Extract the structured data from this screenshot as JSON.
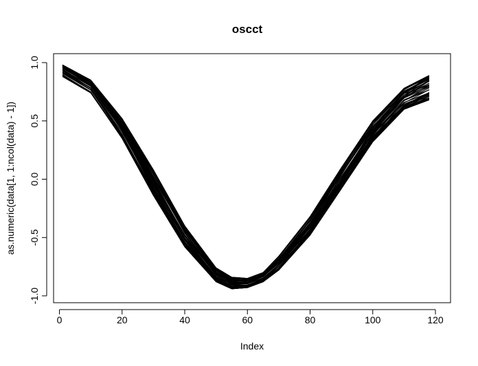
{
  "chart_data": {
    "type": "line",
    "title": "oscct",
    "xlabel": "Index",
    "ylabel": "as.numeric(data[1, 1:ncol(data) - 1])",
    "xlim": [
      1,
      120
    ],
    "ylim": [
      -1.0,
      1.0
    ],
    "x_ticks": [
      0,
      20,
      40,
      60,
      80,
      100,
      120
    ],
    "y_ticks": [
      -1.0,
      -0.5,
      0.0,
      0.5,
      1.0
    ],
    "x_tick_labels": [
      "0",
      "20",
      "40",
      "60",
      "80",
      "100",
      "120"
    ],
    "y_tick_labels": [
      "-1.0",
      "-0.5",
      "0.0",
      "0.5",
      "1.0"
    ],
    "grid": false,
    "legend": "none",
    "line_color": "#000000",
    "n_points_per_series": 118,
    "series_envelope": {
      "x": [
        1,
        10,
        20,
        30,
        40,
        50,
        55,
        60,
        65,
        70,
        80,
        90,
        100,
        110,
        118
      ],
      "upper": [
        0.98,
        0.85,
        0.52,
        0.08,
        -0.4,
        -0.76,
        -0.84,
        -0.85,
        -0.8,
        -0.66,
        -0.32,
        0.1,
        0.5,
        0.78,
        0.89
      ],
      "lower": [
        0.88,
        0.74,
        0.35,
        -0.14,
        -0.58,
        -0.88,
        -0.94,
        -0.93,
        -0.88,
        -0.78,
        -0.48,
        -0.08,
        0.32,
        0.6,
        0.68
      ]
    }
  }
}
